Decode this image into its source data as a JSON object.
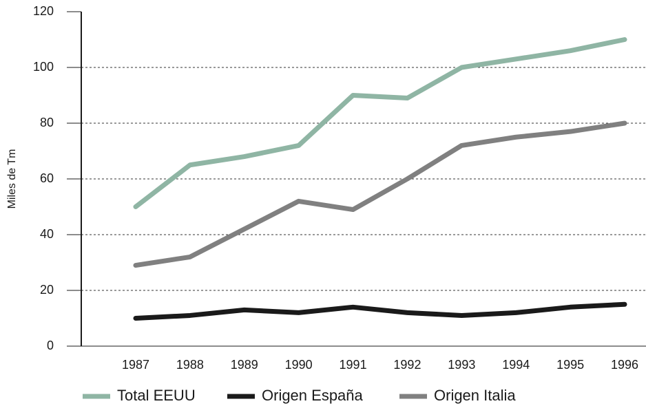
{
  "chart_data": {
    "type": "line",
    "y_label": "Miles de Tm",
    "categories": [
      "1987",
      "1988",
      "1989",
      "1990",
      "1991",
      "1992",
      "1993",
      "1994",
      "1995",
      "1996"
    ],
    "series": [
      {
        "name": "Total EEUU",
        "color": "#8fb5a4",
        "values": [
          50,
          65,
          68,
          72,
          90,
          89,
          100,
          103,
          106,
          110
        ]
      },
      {
        "name": "Origen España",
        "color": "#1a1a1a",
        "values": [
          10,
          11,
          13,
          12,
          14,
          12,
          11,
          12,
          14,
          15
        ]
      },
      {
        "name": "Origen Italia",
        "color": "#808080",
        "values": [
          29,
          32,
          42,
          52,
          49,
          60,
          72,
          75,
          77,
          80
        ]
      }
    ],
    "ylim": [
      0,
      120
    ],
    "yticks": [
      0,
      20,
      40,
      60,
      80,
      100,
      120
    ],
    "grid": true,
    "legend": "bottom"
  }
}
